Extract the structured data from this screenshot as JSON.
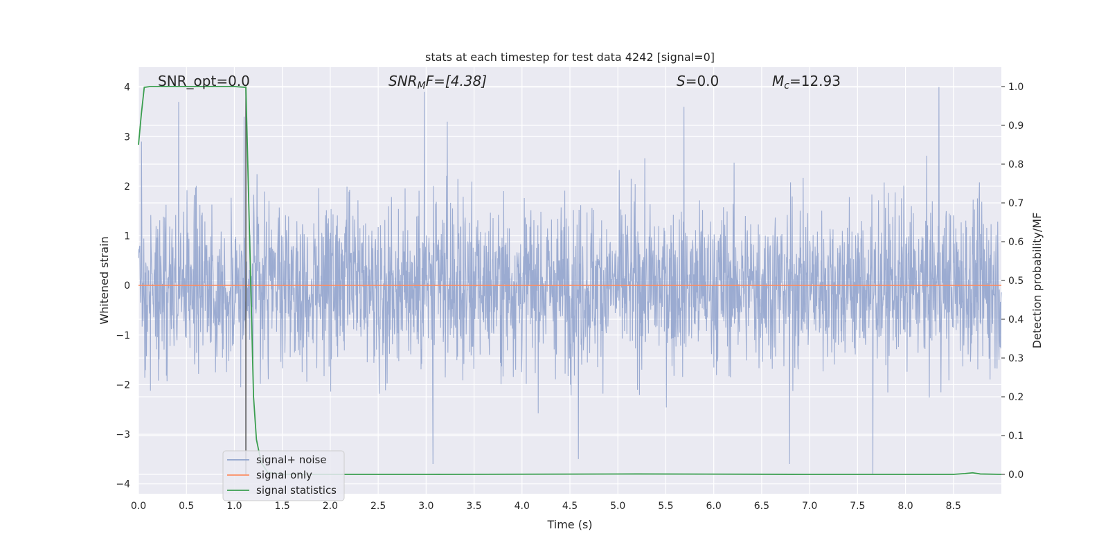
{
  "chart_data": {
    "type": "line",
    "title": "stats at each timestep for test data 4242 [signal=0]",
    "xlabel": "Time (s)",
    "ylabel": "Whitened strain",
    "y2label": "Detection probability/MF",
    "xlim": [
      0.0,
      9.0
    ],
    "ylim": [
      -4.2,
      4.4
    ],
    "y2lim": [
      -0.05,
      1.05
    ],
    "x_ticks": [
      "0.0",
      "0.5",
      "1.0",
      "1.5",
      "2.0",
      "2.5",
      "3.0",
      "3.5",
      "4.0",
      "4.5",
      "5.0",
      "5.5",
      "6.0",
      "6.5",
      "7.0",
      "7.5",
      "8.0",
      "8.5"
    ],
    "y_ticks": [
      "4",
      "3",
      "2",
      "1",
      "0",
      "−1",
      "−2",
      "−3",
      "−4"
    ],
    "y2_ticks": [
      "1.0",
      "0.9",
      "0.8",
      "0.7",
      "0.6",
      "0.5",
      "0.4",
      "0.3",
      "0.2",
      "0.1",
      "0.0"
    ],
    "grid": true,
    "legend_position": "lower-left",
    "legend": [
      "signal+ noise",
      "signal only",
      "signal statistics"
    ],
    "annotations": {
      "snr_opt": "SNR_opt=0.0",
      "snr_mf_base": "SNR",
      "snr_mf_sub": "M",
      "snr_mf_rest": "F=[4.38]",
      "s_it": "S",
      "s_val": "=0.0",
      "mc_base": "M",
      "mc_sub": "c",
      "mc_val": "=12.93"
    },
    "marker_time": 1.12,
    "series": [
      {
        "name": "signal+ noise",
        "color": "#8da0cb",
        "description": "dense whitened strain noise, sampled at high rate, mostly within ±2.5",
        "peak_values": [
          {
            "x": 0.03,
            "y": 2.9
          },
          {
            "x": 0.42,
            "y": 3.7
          },
          {
            "x": 1.1,
            "y": 3.4
          },
          {
            "x": 2.98,
            "y": 3.9
          },
          {
            "x": 3.22,
            "y": 3.3
          },
          {
            "x": 5.69,
            "y": 3.6
          },
          {
            "x": 8.35,
            "y": 4.0
          },
          {
            "x": 3.07,
            "y": -3.6
          },
          {
            "x": 4.59,
            "y": -3.5
          },
          {
            "x": 6.79,
            "y": -3.6
          },
          {
            "x": 7.66,
            "y": -3.8
          }
        ]
      },
      {
        "name": "signal only",
        "color": "#fc8d62",
        "values_note": "flat at zero",
        "points": [
          [
            0.0,
            0.0
          ],
          [
            9.0,
            0.0
          ]
        ]
      },
      {
        "name": "signal statistics",
        "color": "#3a9e4f",
        "axis": "right",
        "points": [
          [
            0.0,
            0.85
          ],
          [
            0.03,
            0.93
          ],
          [
            0.06,
            0.998
          ],
          [
            0.12,
            1.0
          ],
          [
            0.5,
            1.0
          ],
          [
            1.0,
            1.0
          ],
          [
            1.12,
            0.998
          ],
          [
            1.14,
            0.8
          ],
          [
            1.17,
            0.5
          ],
          [
            1.2,
            0.2
          ],
          [
            1.23,
            0.09
          ],
          [
            1.28,
            0.03
          ],
          [
            1.35,
            0.005
          ],
          [
            1.5,
            0.0
          ],
          [
            3.0,
            0.0
          ],
          [
            5.2,
            0.001
          ],
          [
            7.0,
            0.0
          ],
          [
            8.5,
            0.0
          ],
          [
            8.62,
            0.002
          ],
          [
            8.7,
            0.004
          ],
          [
            8.78,
            0.001
          ],
          [
            9.0,
            0.0
          ]
        ]
      }
    ],
    "colors": {
      "plot_bg": "#eaeaf2",
      "grid": "#ffffff",
      "marker_line": "#555555"
    }
  }
}
